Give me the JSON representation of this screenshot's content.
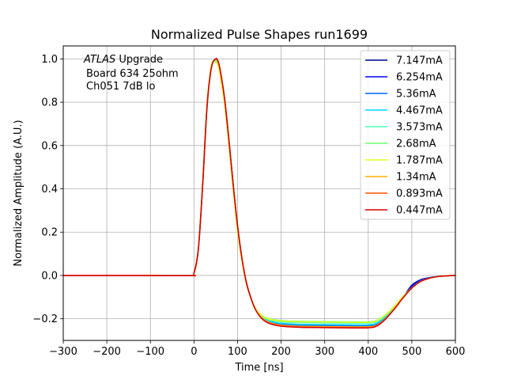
{
  "chart_data": {
    "type": "line",
    "title": "Normalized Pulse Shapes run1699",
    "xlabel": "Time [ns]",
    "ylabel": "Normalized Amplitude (A.U.)",
    "xlim": [
      -300,
      600
    ],
    "ylim": [
      -0.3,
      1.06
    ],
    "x_ticks": [
      -300,
      -200,
      -100,
      0,
      100,
      200,
      300,
      400,
      500,
      600
    ],
    "x_tick_labels": [
      "−300",
      "−200",
      "−100",
      "0",
      "100",
      "200",
      "300",
      "400",
      "500",
      "600"
    ],
    "y_ticks": [
      -0.2,
      0.0,
      0.2,
      0.4,
      0.6,
      0.8,
      1.0
    ],
    "y_tick_labels": [
      "−0.2",
      "0.0",
      "0.2",
      "0.4",
      "0.6",
      "0.8",
      "1.0"
    ],
    "grid": true,
    "legend_position": "top-right",
    "annotation": {
      "atlas": "ATLAS",
      "line1_rest": " Upgrade",
      "line2": "Board 634 25ohm",
      "line3": "Ch051 7dB lo"
    },
    "x": [
      -300,
      -100,
      -5,
      0,
      10,
      20,
      30,
      40,
      50,
      55,
      60,
      70,
      80,
      90,
      100,
      110,
      120,
      130,
      140,
      150,
      160,
      170,
      180,
      190,
      200,
      225,
      250,
      300,
      350,
      400,
      420,
      440,
      460,
      480,
      500,
      520,
      540,
      560,
      580,
      600
    ],
    "series": [
      {
        "name": "7.147mA",
        "color": "#00008f",
        "values": [
          0,
          0,
          0,
          0.01,
          0.12,
          0.42,
          0.78,
          0.96,
          1.0,
          0.99,
          0.95,
          0.82,
          0.63,
          0.42,
          0.23,
          0.08,
          -0.03,
          -0.1,
          -0.15,
          -0.18,
          -0.2,
          -0.21,
          -0.217,
          -0.222,
          -0.226,
          -0.23,
          -0.232,
          -0.233,
          -0.234,
          -0.234,
          -0.225,
          -0.195,
          -0.15,
          -0.1,
          -0.045,
          -0.02,
          -0.01,
          -0.005,
          -0.002,
          0
        ]
      },
      {
        "name": "6.254mA",
        "color": "#0000ff",
        "values": [
          0,
          0,
          0,
          0.01,
          0.12,
          0.42,
          0.78,
          0.96,
          1.0,
          0.99,
          0.95,
          0.82,
          0.63,
          0.42,
          0.23,
          0.08,
          -0.03,
          -0.1,
          -0.15,
          -0.18,
          -0.2,
          -0.21,
          -0.217,
          -0.222,
          -0.225,
          -0.229,
          -0.231,
          -0.232,
          -0.233,
          -0.233,
          -0.224,
          -0.194,
          -0.15,
          -0.1,
          -0.05,
          -0.022,
          -0.011,
          -0.005,
          -0.002,
          0
        ]
      },
      {
        "name": "5.36mA",
        "color": "#0063ff",
        "values": [
          0,
          0,
          0,
          0.01,
          0.12,
          0.42,
          0.78,
          0.96,
          1.0,
          0.99,
          0.95,
          0.82,
          0.63,
          0.42,
          0.23,
          0.08,
          -0.03,
          -0.1,
          -0.15,
          -0.18,
          -0.2,
          -0.21,
          -0.216,
          -0.221,
          -0.224,
          -0.228,
          -0.23,
          -0.231,
          -0.232,
          -0.232,
          -0.223,
          -0.193,
          -0.15,
          -0.1,
          -0.055,
          -0.025,
          -0.012,
          -0.005,
          -0.002,
          0
        ]
      },
      {
        "name": "4.467mA",
        "color": "#00d4ff",
        "values": [
          0,
          0,
          0,
          0.01,
          0.12,
          0.42,
          0.78,
          0.96,
          1.0,
          0.99,
          0.95,
          0.82,
          0.63,
          0.42,
          0.23,
          0.08,
          -0.03,
          -0.1,
          -0.15,
          -0.18,
          -0.199,
          -0.208,
          -0.214,
          -0.218,
          -0.221,
          -0.224,
          -0.226,
          -0.227,
          -0.228,
          -0.228,
          -0.22,
          -0.19,
          -0.148,
          -0.1,
          -0.058,
          -0.027,
          -0.012,
          -0.005,
          -0.002,
          0
        ]
      },
      {
        "name": "3.573mA",
        "color": "#4dffb8",
        "values": [
          0,
          0,
          0,
          0.01,
          0.12,
          0.42,
          0.77,
          0.96,
          0.995,
          0.985,
          0.94,
          0.81,
          0.62,
          0.41,
          0.22,
          0.075,
          -0.035,
          -0.1,
          -0.15,
          -0.178,
          -0.195,
          -0.204,
          -0.209,
          -0.212,
          -0.214,
          -0.217,
          -0.218,
          -0.219,
          -0.22,
          -0.22,
          -0.213,
          -0.185,
          -0.145,
          -0.098,
          -0.058,
          -0.028,
          -0.013,
          -0.005,
          -0.002,
          0
        ]
      },
      {
        "name": "2.68mA",
        "color": "#6aff6a",
        "values": [
          0,
          0,
          0,
          0.01,
          0.12,
          0.43,
          0.79,
          0.97,
          0.99,
          0.975,
          0.93,
          0.8,
          0.61,
          0.4,
          0.21,
          0.07,
          -0.035,
          -0.1,
          -0.148,
          -0.175,
          -0.19,
          -0.198,
          -0.203,
          -0.206,
          -0.208,
          -0.211,
          -0.212,
          -0.213,
          -0.214,
          -0.214,
          -0.207,
          -0.18,
          -0.142,
          -0.096,
          -0.057,
          -0.028,
          -0.013,
          -0.005,
          -0.002,
          0
        ]
      },
      {
        "name": "1.787mA",
        "color": "#e6ff1a",
        "values": [
          0,
          0,
          0,
          0.01,
          0.12,
          0.43,
          0.79,
          0.97,
          0.985,
          0.97,
          0.925,
          0.795,
          0.605,
          0.395,
          0.205,
          0.068,
          -0.036,
          -0.1,
          -0.148,
          -0.176,
          -0.192,
          -0.2,
          -0.205,
          -0.208,
          -0.21,
          -0.213,
          -0.214,
          -0.215,
          -0.216,
          -0.216,
          -0.209,
          -0.182,
          -0.143,
          -0.097,
          -0.057,
          -0.028,
          -0.013,
          -0.005,
          -0.002,
          0
        ]
      },
      {
        "name": "1.34mA",
        "color": "#ffad00",
        "values": [
          0,
          0,
          0,
          0.01,
          0.12,
          0.42,
          0.78,
          0.96,
          1.0,
          0.99,
          0.95,
          0.82,
          0.63,
          0.42,
          0.23,
          0.08,
          -0.03,
          -0.1,
          -0.152,
          -0.183,
          -0.203,
          -0.214,
          -0.221,
          -0.226,
          -0.229,
          -0.233,
          -0.235,
          -0.236,
          -0.237,
          -0.237,
          -0.229,
          -0.198,
          -0.153,
          -0.102,
          -0.058,
          -0.028,
          -0.013,
          -0.005,
          -0.002,
          0
        ]
      },
      {
        "name": "0.893mA",
        "color": "#ff5200",
        "values": [
          0,
          0,
          0,
          0.01,
          0.12,
          0.42,
          0.78,
          0.96,
          1.0,
          0.99,
          0.95,
          0.82,
          0.63,
          0.42,
          0.23,
          0.08,
          -0.03,
          -0.1,
          -0.153,
          -0.185,
          -0.206,
          -0.218,
          -0.225,
          -0.23,
          -0.233,
          -0.237,
          -0.239,
          -0.24,
          -0.241,
          -0.241,
          -0.232,
          -0.2,
          -0.154,
          -0.103,
          -0.058,
          -0.028,
          -0.013,
          -0.005,
          -0.002,
          0
        ]
      },
      {
        "name": "0.447mA",
        "color": "#d50000",
        "values": [
          0,
          0,
          0,
          0.01,
          0.12,
          0.42,
          0.78,
          0.96,
          1.0,
          0.99,
          0.95,
          0.82,
          0.63,
          0.42,
          0.23,
          0.08,
          -0.03,
          -0.1,
          -0.153,
          -0.186,
          -0.207,
          -0.219,
          -0.226,
          -0.231,
          -0.234,
          -0.238,
          -0.24,
          -0.241,
          -0.242,
          -0.242,
          -0.233,
          -0.201,
          -0.155,
          -0.103,
          -0.058,
          -0.028,
          -0.013,
          -0.005,
          -0.002,
          0
        ]
      }
    ]
  }
}
